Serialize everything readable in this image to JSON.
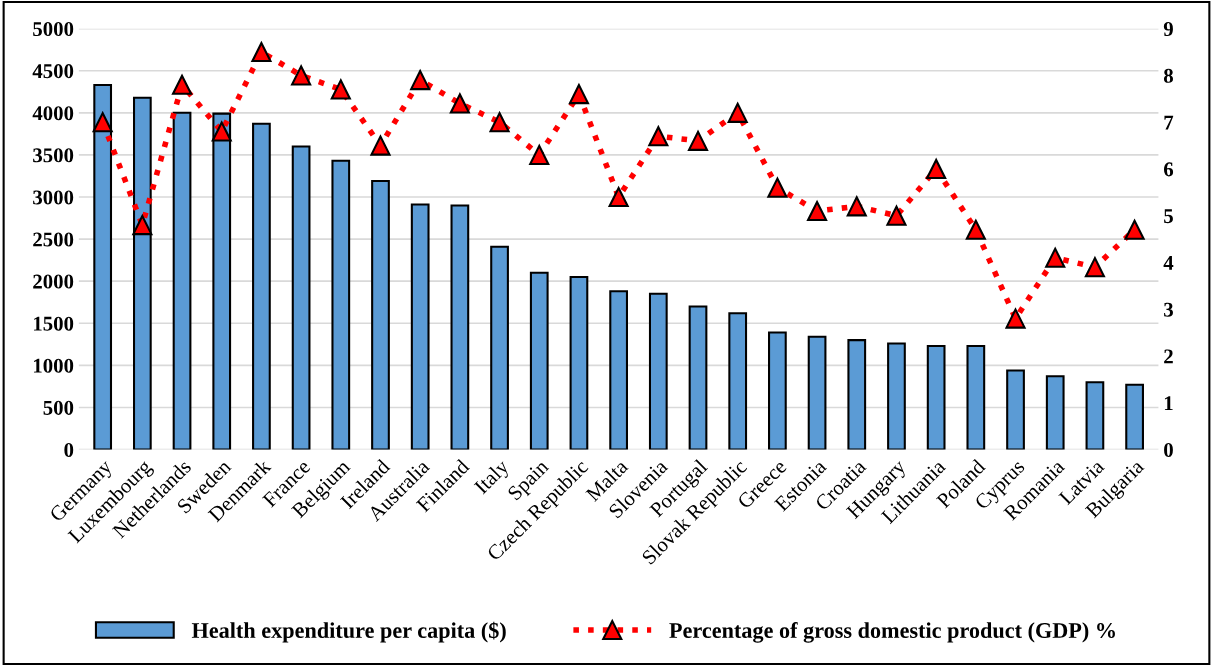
{
  "chart_data": {
    "type": "bar",
    "categories": [
      "Germany",
      "Luxembourg",
      "Netherlands",
      "Sweden",
      "Denmark",
      "France",
      "Belgium",
      "Ireland",
      "Australia",
      "Finland",
      "Italy",
      "Spain",
      "Czech Republic",
      "Malta",
      "Slovenia",
      "Portugal",
      "Slovak Republic",
      "Greece",
      "Estonia",
      "Croatia",
      "Hungary",
      "Lithuania",
      "Poland",
      "Cyprus",
      "Romania",
      "Latvia",
      "Bulgaria"
    ],
    "series": [
      {
        "name": "Health expenditure per capita ($)",
        "color": "#5b9bd5",
        "values": [
          4330,
          4180,
          4000,
          3990,
          3870,
          3600,
          3430,
          3190,
          2910,
          2900,
          2410,
          2100,
          2050,
          1880,
          1850,
          1700,
          1620,
          1390,
          1340,
          1300,
          1260,
          1230,
          1230,
          940,
          870,
          800,
          770
        ]
      },
      {
        "name": "Percentage of gross domestic product (GDP) %",
        "type": "line",
        "axis": "y2",
        "color": "#ff0000",
        "marker": "triangle",
        "line_style": "dotted",
        "values": [
          7.0,
          4.8,
          7.8,
          6.8,
          8.5,
          8.0,
          7.7,
          6.5,
          7.9,
          7.4,
          7.0,
          6.3,
          7.6,
          5.4,
          6.7,
          6.6,
          7.2,
          5.6,
          5.1,
          5.2,
          5.0,
          6.0,
          4.7,
          2.8,
          4.1,
          3.9,
          4.7
        ]
      }
    ],
    "ylim": [
      0,
      5000
    ],
    "yticks": [
      0,
      500,
      1000,
      1500,
      2000,
      2500,
      3000,
      3500,
      4000,
      4500,
      5000
    ],
    "y2lim": [
      0,
      9
    ],
    "y2ticks": [
      0,
      1,
      2,
      3,
      4,
      5,
      6,
      7,
      8,
      9
    ],
    "grid": "y",
    "legend": "bottom"
  }
}
